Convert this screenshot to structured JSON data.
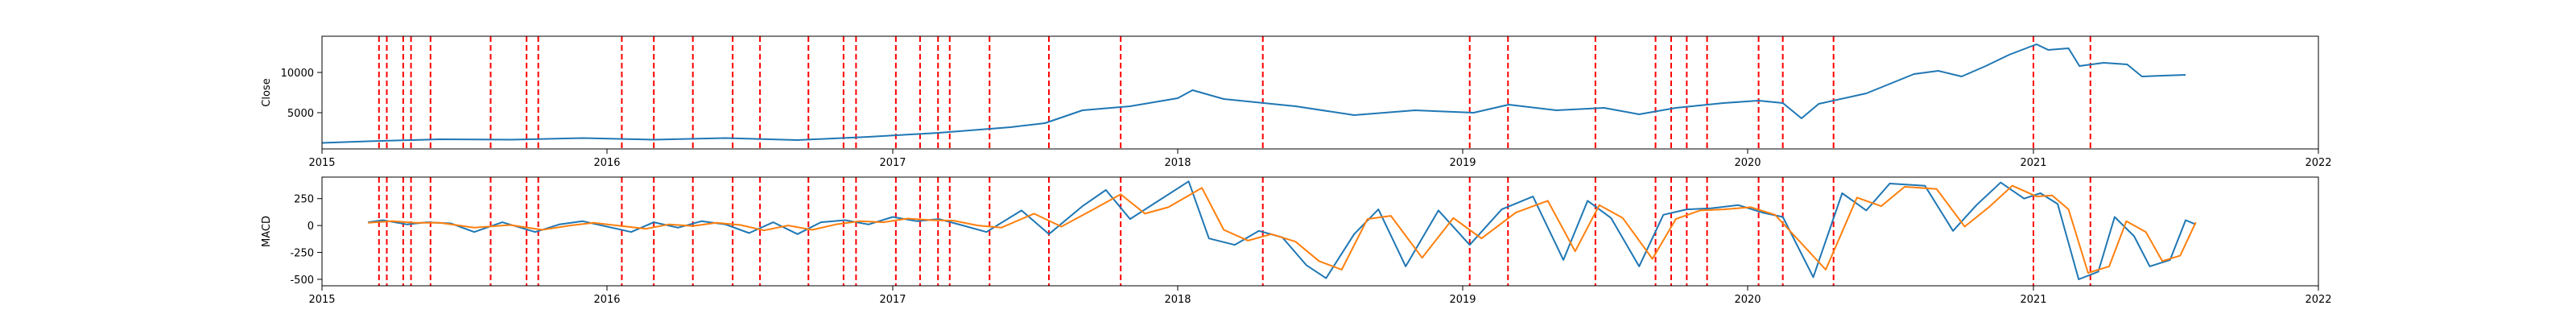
{
  "chart_data": [
    {
      "type": "line",
      "ylabel": "Close",
      "xlim": [
        "2015-01-01",
        "2022-01-01"
      ],
      "ylim": [
        500,
        14500
      ],
      "x_ticks": [
        "2015",
        "2016",
        "2017",
        "2018",
        "2019",
        "2020",
        "2021",
        "2022"
      ],
      "y_ticks": [
        5000,
        10000
      ],
      "grid": false,
      "series": [
        {
          "color": "#1f77b4",
          "points": [
            [
              "2015-01-01",
              1250
            ],
            [
              "2015-03-01",
              1450
            ],
            [
              "2015-06-01",
              1700
            ],
            [
              "2015-09-01",
              1650
            ],
            [
              "2015-12-01",
              1850
            ],
            [
              "2016-03-01",
              1650
            ],
            [
              "2016-06-01",
              1850
            ],
            [
              "2016-09-01",
              1600
            ],
            [
              "2016-12-01",
              2000
            ],
            [
              "2017-03-01",
              2500
            ],
            [
              "2017-06-01",
              3200
            ],
            [
              "2017-07-15",
              3700
            ],
            [
              "2017-09-01",
              5300
            ],
            [
              "2017-11-01",
              5800
            ],
            [
              "2018-01-01",
              6800
            ],
            [
              "2018-01-20",
              7800
            ],
            [
              "2018-03-01",
              6700
            ],
            [
              "2018-06-01",
              5800
            ],
            [
              "2018-08-15",
              4700
            ],
            [
              "2018-11-01",
              5300
            ],
            [
              "2019-01-15",
              5000
            ],
            [
              "2019-03-01",
              6000
            ],
            [
              "2019-05-01",
              5300
            ],
            [
              "2019-07-01",
              5600
            ],
            [
              "2019-08-15",
              4800
            ],
            [
              "2019-10-01",
              5600
            ],
            [
              "2019-12-01",
              6200
            ],
            [
              "2020-01-15",
              6500
            ],
            [
              "2020-02-15",
              6200
            ],
            [
              "2020-03-10",
              4300
            ],
            [
              "2020-04-01",
              6100
            ],
            [
              "2020-06-01",
              7400
            ],
            [
              "2020-08-01",
              9800
            ],
            [
              "2020-09-01",
              10200
            ],
            [
              "2020-10-01",
              9500
            ],
            [
              "2020-11-01",
              10800
            ],
            [
              "2020-12-01",
              12200
            ],
            [
              "2021-01-05",
              13500
            ],
            [
              "2021-01-20",
              12800
            ],
            [
              "2021-02-15",
              13000
            ],
            [
              "2021-03-01",
              10800
            ],
            [
              "2021-04-01",
              11200
            ],
            [
              "2021-05-01",
              11000
            ],
            [
              "2021-05-20",
              9500
            ],
            [
              "2021-06-15",
              9600
            ],
            [
              "2021-07-15",
              9700
            ]
          ]
        }
      ]
    },
    {
      "type": "line",
      "ylabel": "MACD",
      "xlim": [
        "2015-01-01",
        "2022-01-01"
      ],
      "ylim": [
        -560,
        450
      ],
      "x_ticks": [
        "2015",
        "2016",
        "2017",
        "2018",
        "2019",
        "2020",
        "2021",
        "2022"
      ],
      "y_ticks": [
        -500,
        -250,
        0,
        250
      ],
      "grid": false,
      "series": [
        {
          "color": "#1f77b4",
          "points": [
            [
              "2015-03-01",
              30
            ],
            [
              "2015-03-20",
              50
            ],
            [
              "2015-04-20",
              10
            ],
            [
              "2015-05-15",
              30
            ],
            [
              "2015-06-15",
              20
            ],
            [
              "2015-07-15",
              -60
            ],
            [
              "2015-08-20",
              30
            ],
            [
              "2015-10-01",
              -60
            ],
            [
              "2015-11-01",
              10
            ],
            [
              "2015-12-01",
              40
            ],
            [
              "2016-01-01",
              -10
            ],
            [
              "2016-02-01",
              -60
            ],
            [
              "2016-03-01",
              30
            ],
            [
              "2016-04-01",
              -20
            ],
            [
              "2016-05-01",
              40
            ],
            [
              "2016-06-01",
              10
            ],
            [
              "2016-07-01",
              -70
            ],
            [
              "2016-08-01",
              30
            ],
            [
              "2016-09-01",
              -80
            ],
            [
              "2016-10-01",
              30
            ],
            [
              "2016-11-01",
              50
            ],
            [
              "2016-12-01",
              10
            ],
            [
              "2017-01-01",
              80
            ],
            [
              "2017-02-01",
              40
            ],
            [
              "2017-03-01",
              60
            ],
            [
              "2017-04-01",
              0
            ],
            [
              "2017-05-01",
              -60
            ],
            [
              "2017-06-15",
              140
            ],
            [
              "2017-07-20",
              -80
            ],
            [
              "2017-09-01",
              180
            ],
            [
              "2017-10-01",
              330
            ],
            [
              "2017-11-01",
              60
            ],
            [
              "2017-12-01",
              200
            ],
            [
              "2018-01-15",
              410
            ],
            [
              "2018-02-10",
              -120
            ],
            [
              "2018-03-15",
              -180
            ],
            [
              "2018-04-15",
              -50
            ],
            [
              "2018-05-15",
              -110
            ],
            [
              "2018-06-15",
              -370
            ],
            [
              "2018-07-10",
              -490
            ],
            [
              "2018-08-15",
              -80
            ],
            [
              "2018-09-15",
              150
            ],
            [
              "2018-10-20",
              -380
            ],
            [
              "2018-12-01",
              140
            ],
            [
              "2019-01-10",
              -180
            ],
            [
              "2019-02-20",
              150
            ],
            [
              "2019-04-01",
              270
            ],
            [
              "2019-05-10",
              -320
            ],
            [
              "2019-06-10",
              230
            ],
            [
              "2019-07-10",
              70
            ],
            [
              "2019-08-15",
              -380
            ],
            [
              "2019-09-15",
              100
            ],
            [
              "2019-10-15",
              150
            ],
            [
              "2019-11-15",
              160
            ],
            [
              "2019-12-20",
              190
            ],
            [
              "2020-01-20",
              120
            ],
            [
              "2020-02-15",
              80
            ],
            [
              "2020-03-25",
              -480
            ],
            [
              "2020-05-01",
              300
            ],
            [
              "2020-06-01",
              140
            ],
            [
              "2020-07-01",
              390
            ],
            [
              "2020-08-15",
              370
            ],
            [
              "2020-09-20",
              -50
            ],
            [
              "2020-10-20",
              190
            ],
            [
              "2020-11-20",
              400
            ],
            [
              "2020-12-20",
              250
            ],
            [
              "2021-01-10",
              300
            ],
            [
              "2021-02-01",
              200
            ],
            [
              "2021-02-28",
              -500
            ],
            [
              "2021-03-25",
              -430
            ],
            [
              "2021-04-15",
              80
            ],
            [
              "2021-05-10",
              -100
            ],
            [
              "2021-05-30",
              -380
            ],
            [
              "2021-06-25",
              -320
            ],
            [
              "2021-07-15",
              50
            ],
            [
              "2021-07-28",
              10
            ]
          ]
        },
        {
          "color": "#ff7f0e",
          "points": [
            [
              "2015-03-01",
              25
            ],
            [
              "2015-04-01",
              40
            ],
            [
              "2015-05-01",
              25
            ],
            [
              "2015-06-01",
              25
            ],
            [
              "2015-07-15",
              -20
            ],
            [
              "2015-08-30",
              5
            ],
            [
              "2015-10-10",
              -40
            ],
            [
              "2015-11-15",
              0
            ],
            [
              "2015-12-15",
              25
            ],
            [
              "2016-01-20",
              -5
            ],
            [
              "2016-02-20",
              -30
            ],
            [
              "2016-03-20",
              10
            ],
            [
              "2016-04-20",
              -5
            ],
            [
              "2016-05-20",
              25
            ],
            [
              "2016-06-20",
              5
            ],
            [
              "2016-07-20",
              -45
            ],
            [
              "2016-08-20",
              0
            ],
            [
              "2016-09-20",
              -40
            ],
            [
              "2016-10-20",
              10
            ],
            [
              "2016-11-20",
              40
            ],
            [
              "2016-12-20",
              30
            ],
            [
              "2017-01-20",
              65
            ],
            [
              "2017-02-20",
              50
            ],
            [
              "2017-03-20",
              45
            ],
            [
              "2017-04-20",
              0
            ],
            [
              "2017-05-20",
              -20
            ],
            [
              "2017-07-01",
              110
            ],
            [
              "2017-08-05",
              -10
            ],
            [
              "2017-09-15",
              150
            ],
            [
              "2017-10-20",
              290
            ],
            [
              "2017-11-20",
              110
            ],
            [
              "2017-12-20",
              170
            ],
            [
              "2018-02-01",
              350
            ],
            [
              "2018-03-01",
              -40
            ],
            [
              "2018-04-01",
              -140
            ],
            [
              "2018-05-01",
              -80
            ],
            [
              "2018-06-01",
              -150
            ],
            [
              "2018-07-01",
              -330
            ],
            [
              "2018-07-30",
              -410
            ],
            [
              "2018-09-01",
              60
            ],
            [
              "2018-10-01",
              90
            ],
            [
              "2018-11-10",
              -300
            ],
            [
              "2018-12-20",
              70
            ],
            [
              "2019-01-25",
              -120
            ],
            [
              "2019-03-10",
              120
            ],
            [
              "2019-04-20",
              230
            ],
            [
              "2019-05-25",
              -240
            ],
            [
              "2019-06-25",
              190
            ],
            [
              "2019-07-25",
              70
            ],
            [
              "2019-09-01",
              -310
            ],
            [
              "2019-10-01",
              60
            ],
            [
              "2019-11-01",
              140
            ],
            [
              "2019-12-01",
              150
            ],
            [
              "2020-01-05",
              170
            ],
            [
              "2020-02-05",
              100
            ],
            [
              "2020-04-10",
              -410
            ],
            [
              "2020-05-20",
              260
            ],
            [
              "2020-06-20",
              180
            ],
            [
              "2020-07-20",
              360
            ],
            [
              "2020-08-30",
              340
            ],
            [
              "2020-10-05",
              -10
            ],
            [
              "2020-11-05",
              170
            ],
            [
              "2020-12-05",
              370
            ],
            [
              "2021-01-05",
              270
            ],
            [
              "2021-01-25",
              280
            ],
            [
              "2021-02-15",
              150
            ],
            [
              "2021-03-12",
              -440
            ],
            [
              "2021-04-08",
              -380
            ],
            [
              "2021-04-30",
              40
            ],
            [
              "2021-05-25",
              -60
            ],
            [
              "2021-06-15",
              -330
            ],
            [
              "2021-07-08",
              -280
            ],
            [
              "2021-07-28",
              30
            ]
          ]
        }
      ]
    }
  ],
  "event_markers": {
    "color": "#ff0000",
    "dates": [
      "2015-03-15",
      "2015-03-25",
      "2015-04-15",
      "2015-04-25",
      "2015-05-20",
      "2015-08-05",
      "2015-09-20",
      "2015-10-05",
      "2016-01-20",
      "2016-03-01",
      "2016-04-20",
      "2016-06-10",
      "2016-07-15",
      "2016-09-15",
      "2016-10-30",
      "2016-11-15",
      "2017-01-05",
      "2017-02-05",
      "2017-02-28",
      "2017-03-15",
      "2017-05-05",
      "2017-07-20",
      "2017-10-20",
      "2018-04-20",
      "2019-01-10",
      "2019-02-28",
      "2019-06-20",
      "2019-09-05",
      "2019-09-25",
      "2019-10-15",
      "2019-11-10",
      "2020-01-15",
      "2020-02-15",
      "2020-04-20",
      "2021-01-01",
      "2021-03-15"
    ]
  },
  "colors": {
    "axes_edge": "#000000",
    "background": "#ffffff"
  }
}
